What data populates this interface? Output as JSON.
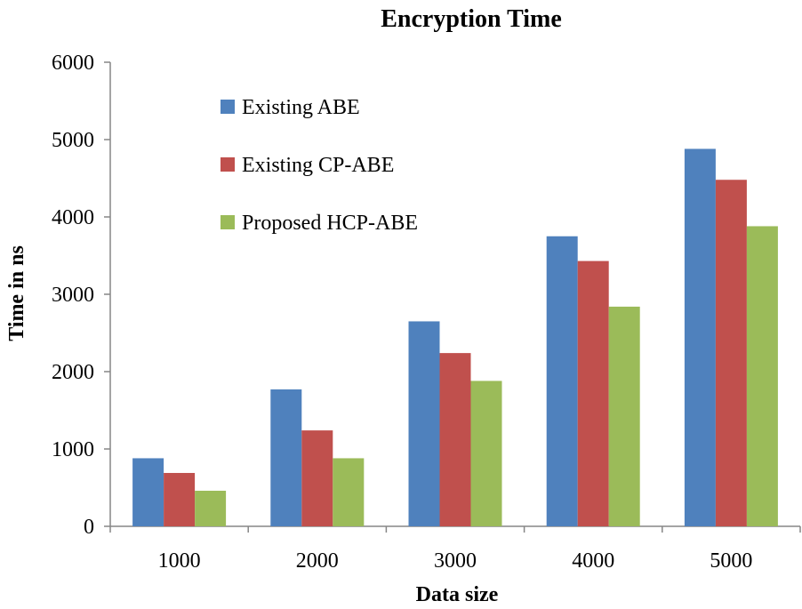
{
  "chart_data": {
    "type": "bar",
    "title": "Encryption Time",
    "xlabel": "Data size",
    "ylabel": "Time in ns",
    "categories": [
      "1000",
      "2000",
      "3000",
      "4000",
      "5000"
    ],
    "ylim": [
      0,
      6000
    ],
    "yticks": [
      "0",
      "1000",
      "2000",
      "3000",
      "4000",
      "5000",
      "6000"
    ],
    "grid": false,
    "legend_position": "top-left",
    "series": [
      {
        "name": "Existing ABE",
        "color": "#4F81BD",
        "values": [
          880,
          1770,
          2650,
          3750,
          4880
        ]
      },
      {
        "name": "Existing CP-ABE",
        "color": "#C0504D",
        "values": [
          690,
          1240,
          2240,
          3430,
          4480
        ]
      },
      {
        "name": "Proposed HCP-ABE",
        "color": "#9BBB59",
        "values": [
          460,
          880,
          1880,
          2840,
          3880
        ]
      }
    ]
  }
}
